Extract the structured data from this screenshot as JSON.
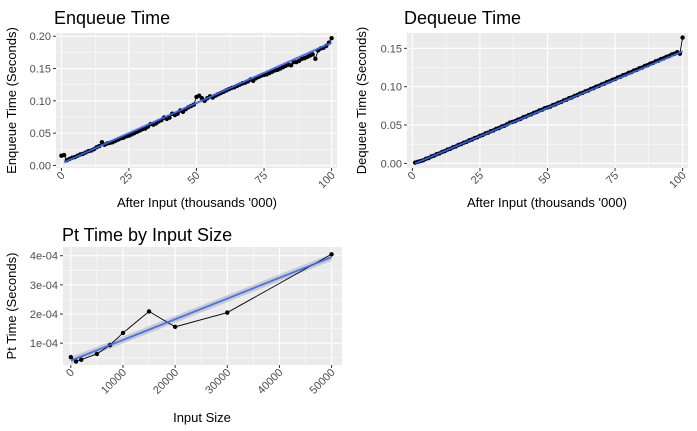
{
  "colors": {
    "panel_background": "#ebebeb",
    "grid_major": "#ffffff",
    "data_line": "#000000",
    "data_point": "#000000",
    "smooth_line": "#3366ff",
    "confidence_band": "#999999"
  },
  "chart_data": [
    {
      "id": "enqueue",
      "type": "line",
      "title": "Enqueue Time",
      "xlabel": "After Input (thousands '000)",
      "ylabel": "Enqueue Time (Seconds)",
      "xlim": [
        -2,
        102
      ],
      "ylim": [
        -0.004,
        0.205
      ],
      "x_ticks": [
        0,
        25,
        50,
        75,
        100
      ],
      "x_tick_labels": [
        "0",
        "25",
        "50",
        "75",
        "100"
      ],
      "y_ticks": [
        0.0,
        0.05,
        0.1,
        0.15,
        0.2
      ],
      "y_tick_labels": [
        "0.00",
        "0.05",
        "0.10",
        "0.15",
        "0.20"
      ],
      "x_tick_rotation": 45,
      "grid": true,
      "smooth": {
        "method": "linear",
        "x": [
          1,
          100
        ],
        "y": [
          0.005,
          0.19
        ]
      },
      "series": [
        {
          "x": [
            0,
            1,
            2,
            3,
            4,
            5,
            6,
            7,
            8,
            9,
            10,
            11,
            12,
            13,
            14,
            15,
            16,
            17,
            18,
            19,
            20,
            21,
            22,
            23,
            24,
            25,
            26,
            27,
            28,
            29,
            30,
            31,
            32,
            33,
            34,
            35,
            36,
            37,
            38,
            39,
            40,
            41,
            42,
            43,
            44,
            45,
            46,
            47,
            48,
            49,
            50,
            51,
            52,
            53,
            54,
            55,
            56,
            57,
            58,
            59,
            60,
            61,
            62,
            63,
            64,
            65,
            66,
            67,
            68,
            69,
            70,
            71,
            72,
            73,
            74,
            75,
            76,
            77,
            78,
            79,
            80,
            81,
            82,
            83,
            84,
            85,
            86,
            87,
            88,
            89,
            90,
            91,
            92,
            93,
            94,
            95,
            96,
            97,
            98,
            99,
            100
          ],
          "y": [
            0.015,
            0.016,
            0.008,
            0.01,
            0.012,
            0.013,
            0.015,
            0.017,
            0.018,
            0.02,
            0.022,
            0.023,
            0.025,
            0.028,
            0.03,
            0.036,
            0.032,
            0.034,
            0.035,
            0.036,
            0.038,
            0.04,
            0.042,
            0.043,
            0.045,
            0.046,
            0.048,
            0.05,
            0.052,
            0.054,
            0.056,
            0.057,
            0.06,
            0.064,
            0.063,
            0.065,
            0.068,
            0.07,
            0.074,
            0.072,
            0.074,
            0.08,
            0.078,
            0.08,
            0.085,
            0.083,
            0.087,
            0.09,
            0.092,
            0.094,
            0.106,
            0.108,
            0.104,
            0.1,
            0.104,
            0.107,
            0.105,
            0.108,
            0.11,
            0.112,
            0.114,
            0.116,
            0.118,
            0.12,
            0.121,
            0.123,
            0.125,
            0.127,
            0.128,
            0.13,
            0.133,
            0.131,
            0.135,
            0.137,
            0.139,
            0.14,
            0.141,
            0.143,
            0.145,
            0.147,
            0.148,
            0.15,
            0.152,
            0.154,
            0.156,
            0.155,
            0.16,
            0.16,
            0.162,
            0.165,
            0.166,
            0.168,
            0.17,
            0.172,
            0.165,
            0.178,
            0.181,
            0.182,
            0.185,
            0.19,
            0.197
          ]
        }
      ]
    },
    {
      "id": "dequeue",
      "type": "line",
      "title": "Dequeue Time",
      "xlabel": "After Input (thousands '000)",
      "ylabel": "Dequeue Time (Seconds)",
      "xlim": [
        -2,
        102
      ],
      "ylim": [
        -0.006,
        0.17
      ],
      "x_ticks": [
        0,
        25,
        50,
        75,
        100
      ],
      "x_tick_labels": [
        "0",
        "25",
        "50",
        "75",
        "100"
      ],
      "y_ticks": [
        0.0,
        0.05,
        0.1,
        0.15
      ],
      "y_tick_labels": [
        "0.00",
        "0.05",
        "0.10",
        "0.15"
      ],
      "x_tick_rotation": 45,
      "grid": true,
      "smooth": {
        "method": "linear",
        "x": [
          1,
          100
        ],
        "y": [
          0.0,
          0.146
        ]
      },
      "series": [
        {
          "x": [
            1,
            2,
            3,
            4,
            5,
            6,
            7,
            8,
            9,
            10,
            11,
            12,
            13,
            14,
            15,
            16,
            17,
            18,
            19,
            20,
            21,
            22,
            23,
            24,
            25,
            26,
            27,
            28,
            29,
            30,
            31,
            32,
            33,
            34,
            35,
            36,
            37,
            38,
            39,
            40,
            41,
            42,
            43,
            44,
            45,
            46,
            47,
            48,
            49,
            50,
            51,
            52,
            53,
            54,
            55,
            56,
            57,
            58,
            59,
            60,
            61,
            62,
            63,
            64,
            65,
            66,
            67,
            68,
            69,
            70,
            71,
            72,
            73,
            74,
            75,
            76,
            77,
            78,
            79,
            80,
            81,
            82,
            83,
            84,
            85,
            86,
            87,
            88,
            89,
            90,
            91,
            92,
            93,
            94,
            95,
            96,
            97,
            98,
            99,
            100
          ],
          "y": [
            0.001,
            0.002,
            0.003,
            0.004,
            0.006,
            0.007,
            0.009,
            0.01,
            0.012,
            0.013,
            0.015,
            0.016,
            0.018,
            0.019,
            0.021,
            0.022,
            0.024,
            0.025,
            0.027,
            0.028,
            0.03,
            0.031,
            0.033,
            0.034,
            0.036,
            0.037,
            0.039,
            0.04,
            0.042,
            0.043,
            0.045,
            0.046,
            0.048,
            0.049,
            0.051,
            0.053,
            0.054,
            0.055,
            0.057,
            0.058,
            0.06,
            0.061,
            0.063,
            0.064,
            0.066,
            0.067,
            0.069,
            0.07,
            0.072,
            0.073,
            0.074,
            0.076,
            0.077,
            0.079,
            0.08,
            0.082,
            0.083,
            0.085,
            0.086,
            0.088,
            0.089,
            0.091,
            0.092,
            0.094,
            0.095,
            0.097,
            0.098,
            0.1,
            0.101,
            0.103,
            0.104,
            0.106,
            0.107,
            0.109,
            0.11,
            0.112,
            0.113,
            0.115,
            0.116,
            0.118,
            0.119,
            0.121,
            0.122,
            0.124,
            0.125,
            0.127,
            0.128,
            0.13,
            0.131,
            0.133,
            0.134,
            0.136,
            0.137,
            0.139,
            0.14,
            0.142,
            0.143,
            0.145,
            0.143,
            0.164
          ]
        }
      ]
    },
    {
      "id": "pt",
      "type": "line",
      "title": "Pt Time by Input Size",
      "xlabel": "Input Size",
      "ylabel": "Pt Time (Seconds)",
      "xlim": [
        -1500,
        52000
      ],
      "ylim": [
        2.5e-05,
        0.00043
      ],
      "x_ticks": [
        0,
        10000,
        20000,
        30000,
        40000,
        50000
      ],
      "x_tick_labels": [
        "0",
        "10000",
        "20000",
        "30000",
        "40000",
        "50000"
      ],
      "y_ticks": [
        0.0001,
        0.0002,
        0.0003,
        0.0004
      ],
      "y_tick_labels": [
        "1e-04",
        "2e-04",
        "3e-04",
        "4e-04"
      ],
      "x_tick_rotation": 45,
      "grid": true,
      "smooth": {
        "method": "linear",
        "x": [
          0,
          50000
        ],
        "y": [
          4e-05,
          0.000395
        ],
        "band": 1.2e-05
      },
      "series": [
        {
          "x": [
            0,
            1000,
            2000,
            5000,
            7500,
            10000,
            15000,
            20000,
            30000,
            50000
          ],
          "y": [
            5.2e-05,
            3.7e-05,
            4.3e-05,
            6.3e-05,
            9.3e-05,
            0.000135,
            0.000209,
            0.000156,
            0.000205,
            0.000405
          ]
        }
      ]
    }
  ]
}
